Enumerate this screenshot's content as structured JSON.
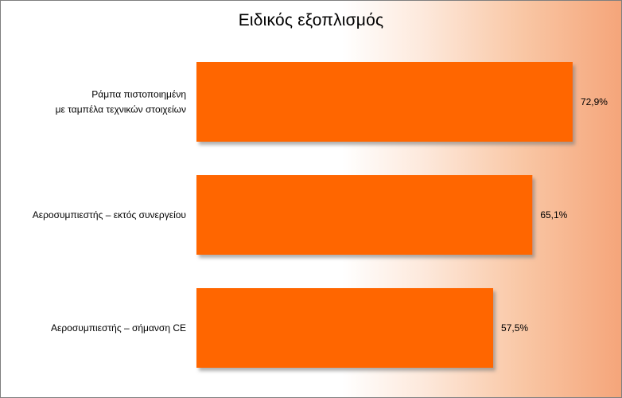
{
  "chart_data": {
    "type": "bar",
    "orientation": "horizontal",
    "title": "Ειδικός εξοπλισμός",
    "categories": [
      [
        "Ράμπα πιστοποιημένη",
        "με ταμπέλα τεχνικών στοιχείων"
      ],
      [
        "Αεροσυμπιεστής – εκτός συνεργείου"
      ],
      [
        "Αεροσυμπιεστής – σήμανση CE"
      ]
    ],
    "values": [
      72.9,
      65.1,
      57.5
    ],
    "value_labels": [
      "72,9%",
      "65,1%",
      "57,5%"
    ],
    "xlim": [
      0,
      80
    ],
    "grid": false,
    "legend": "none",
    "colors": {
      "bar": "#ff6600",
      "bar_shadow": "#8c8c8c",
      "background_gradient": [
        "#ffffff",
        "#f5a57a"
      ]
    }
  }
}
